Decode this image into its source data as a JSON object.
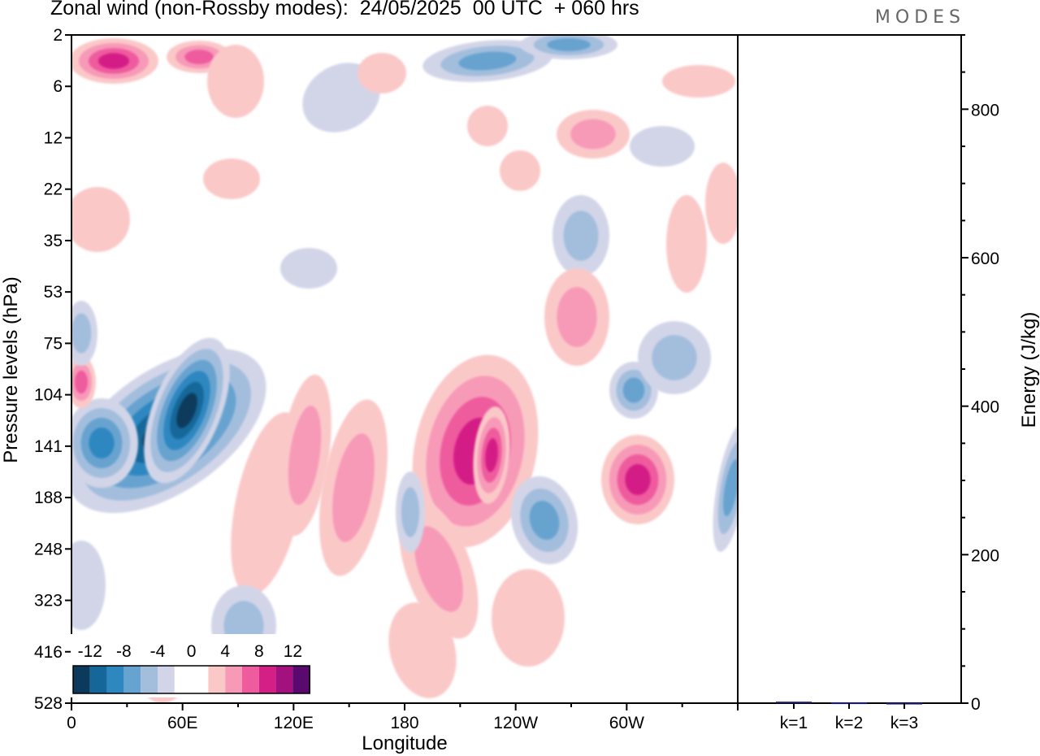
{
  "header": {
    "title": "Zonal wind (non-Rossby modes):  24/05/2025  00 UTC  + 060 hrs",
    "brand": "MODES"
  },
  "chart_data": {
    "type": "heatmap",
    "title": "Zonal wind (non-Rossby modes):  24/05/2025  00 UTC  + 060 hrs",
    "xlabel": "Longitude",
    "ylabel": "Pressure levels (hPa)",
    "x_ticks": [
      "0",
      "60E",
      "120E",
      "180",
      "120W",
      "60W"
    ],
    "x_tick_degrees": [
      0,
      60,
      120,
      180,
      240,
      300
    ],
    "xlim": [
      0,
      360
    ],
    "y_ticks": [
      "2",
      "6",
      "12",
      "22",
      "35",
      "53",
      "75",
      "104",
      "141",
      "188",
      "248",
      "323",
      "416",
      "528"
    ],
    "colorbar": {
      "tick_labels": [
        "-12",
        "-8",
        "-4",
        "0",
        "4",
        "8",
        "12"
      ],
      "levels": [
        -14,
        -12,
        -10,
        -8,
        -6,
        -4,
        -2,
        0,
        2,
        4,
        6,
        8,
        10,
        12,
        14
      ],
      "colors": [
        "#0b3a5c",
        "#15679a",
        "#2f87c0",
        "#67a3d0",
        "#a3bedd",
        "#d2d5e8",
        "#ffffff",
        "#ffffff",
        "#fbc8c8",
        "#f79ab8",
        "#ef5c9e",
        "#d41f86",
        "#a3117f",
        "#5a0a6e"
      ]
    },
    "features": [
      {
        "kind": "negative",
        "peak": -14,
        "lon": 52,
        "level": "141"
      },
      {
        "kind": "negative",
        "peak": -8,
        "lon": 15,
        "level": "141"
      },
      {
        "kind": "positive",
        "peak": 10,
        "lon": 227,
        "level": "141"
      },
      {
        "kind": "positive",
        "peak": 8,
        "lon": 310,
        "level": "141"
      },
      {
        "kind": "negative",
        "peak": -8,
        "lon": 256,
        "level": "188"
      },
      {
        "kind": "positive",
        "peak": 8,
        "lon": 15,
        "level": "2"
      },
      {
        "kind": "negative",
        "peak": -8,
        "lon": 262,
        "level": "2"
      }
    ],
    "energy": {
      "ylabel": "Energy (J/kg)",
      "ylim": [
        0,
        900
      ],
      "y_ticks": [
        0,
        200,
        400,
        600,
        800
      ],
      "categories": [
        "k=1",
        "k=2",
        "k=3"
      ],
      "values": [
        2,
        1,
        0.5
      ],
      "bar_color": "#1a1a6e"
    }
  }
}
